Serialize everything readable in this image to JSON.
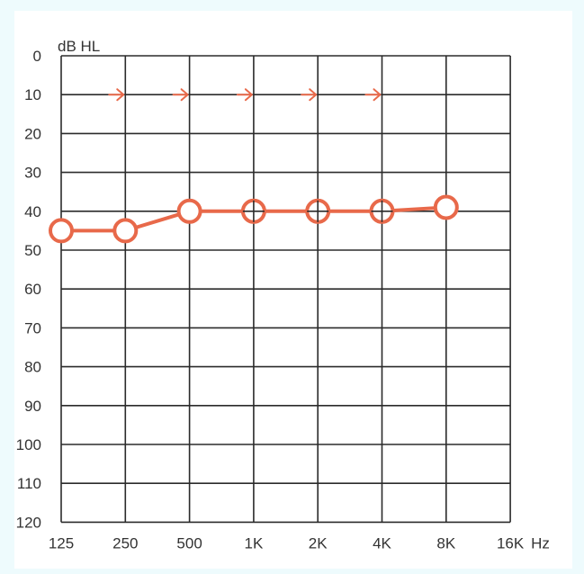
{
  "chart_data": {
    "type": "line",
    "ylabel": "dB HL",
    "xunit": "Hz",
    "x_tick_labels": [
      "125",
      "250",
      "500",
      "1K",
      "2K",
      "4K",
      "8K",
      "16K"
    ],
    "y_tick_labels": [
      "0",
      "10",
      "20",
      "30",
      "40",
      "50",
      "60",
      "70",
      "80",
      "90",
      "100",
      "110",
      "120"
    ],
    "ylim": [
      0,
      120
    ],
    "y_inverted": true,
    "grid": true,
    "series": [
      {
        "x": [
          "125",
          "250",
          "500",
          "1K",
          "2K",
          "4K",
          "8K"
        ],
        "values": [
          45,
          45,
          40,
          40,
          40,
          40,
          39
        ],
        "markers": [
          "circle",
          "circle",
          "circle",
          "circle-cross",
          "circle-cross",
          "circle-cross",
          "circle"
        ],
        "color": "#e8694a"
      },
      {
        "x": [
          "250",
          "500",
          "1K",
          "2K",
          "4K"
        ],
        "values": [
          10,
          10,
          10,
          10,
          10
        ],
        "marker": "right-arrow",
        "color": "#e8694a"
      }
    ]
  },
  "colors": {
    "grid": "#2b2b2b",
    "text": "#333333",
    "background": "#eefbfd",
    "plot_background": "#ffffff"
  }
}
